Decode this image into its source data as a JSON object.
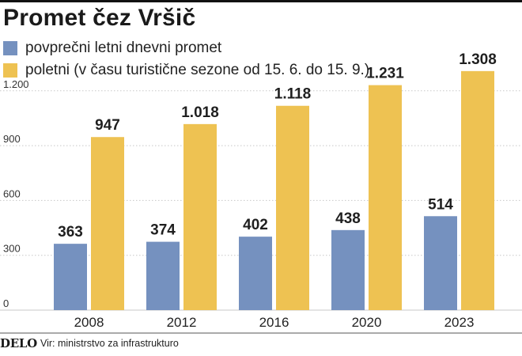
{
  "title": "Promet čez Vršič",
  "colors": {
    "blue": "#7591bf",
    "yellow": "#eec252",
    "grid": "#c8c8c8",
    "text": "#222222"
  },
  "legend": [
    {
      "label": "povprečni letni dnevni promet",
      "color": "#7591bf"
    },
    {
      "label": "poletni (v času turistične sezone od 15. 6. do 15. 9.)",
      "color": "#eec252"
    }
  ],
  "footer": {
    "logo": "DELO",
    "source": "Vir: ministrstvo za infrastrukturo"
  },
  "chart_data": {
    "type": "bar",
    "categories": [
      "2008",
      "2012",
      "2016",
      "2020",
      "2023"
    ],
    "series": [
      {
        "name": "povprečni letni dnevni promet",
        "values": [
          363,
          374,
          402,
          438,
          514
        ],
        "labels": [
          "363",
          "374",
          "402",
          "438",
          "514"
        ],
        "color": "#7591bf"
      },
      {
        "name": "poletni (v času turistične sezone od 15. 6. do 15. 9.)",
        "values": [
          947,
          1018,
          1118,
          1231,
          1308
        ],
        "labels": [
          "947",
          "1.018",
          "1.118",
          "1.231",
          "1.308"
        ],
        "color": "#eec252"
      }
    ],
    "yticks": [
      0,
      300,
      600,
      900,
      1200
    ],
    "ytick_labels": [
      "0",
      "300",
      "600",
      "900",
      "1.200"
    ],
    "ylim": [
      0,
      1500
    ],
    "grid": true,
    "legend_position": "top-left"
  }
}
